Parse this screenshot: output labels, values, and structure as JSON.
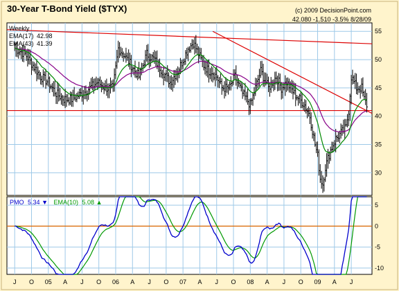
{
  "header": {
    "title": "30-Year T-Bond Yield ($TYX)",
    "copyright": "(c) 2009 DecisionPoint.com",
    "quote": "42.080  -1.510  -3.5%  8/28/09",
    "period": "Weekly"
  },
  "colors": {
    "background": "#fff4cc",
    "plot_bg": "#ffffff",
    "grid": "#9ec9e8",
    "bars": "#000000",
    "ema_short": "#008800",
    "ema_long": "#880088",
    "trendline": "#dd0000",
    "pmo": "#0000cc",
    "pmo_signal": "#009900",
    "zero_line": "#dd6600"
  },
  "chart_data": [
    {
      "type": "bar",
      "subtype": "high-low price bars with moving averages",
      "title": "30-Year T-Bond Yield ($TYX)",
      "frequency": "Weekly",
      "x_ticks": [
        "J",
        "O",
        "05",
        "A",
        "J",
        "O",
        "06",
        "A",
        "J",
        "O",
        "07",
        "A",
        "J",
        "O",
        "08",
        "A",
        "J",
        "O",
        "09",
        "A",
        "J"
      ],
      "x_tick_weeks": [
        0,
        13,
        26,
        39,
        52,
        65,
        78,
        91,
        104,
        117,
        130,
        143,
        156,
        169,
        182,
        195,
        208,
        221,
        234,
        247,
        260
      ],
      "y_ticks": [
        30,
        35,
        40,
        45,
        50,
        55
      ],
      "ylim": [
        26,
        56.5
      ],
      "right_axis": true,
      "grid": true,
      "legend": [
        {
          "name": "EMA(17)",
          "value": "42.98",
          "color": "#008800"
        },
        {
          "name": "EMA(43)",
          "value": "41.39",
          "color": "#880088"
        }
      ],
      "anchors_week": [
        0,
        8,
        14,
        20,
        26,
        32,
        38,
        44,
        52,
        58,
        64,
        70,
        76,
        80,
        84,
        90,
        96,
        102,
        108,
        114,
        120,
        126,
        130,
        134,
        138,
        140,
        142,
        146,
        150,
        152,
        156,
        160,
        166,
        170,
        176,
        182,
        186,
        190,
        196,
        202,
        206,
        210,
        216,
        220,
        224,
        228,
        232,
        234,
        236,
        238,
        240,
        244,
        248,
        252,
        256,
        258,
        260,
        264,
        268,
        270,
        272
      ],
      "anchors_close": [
        52,
        51,
        49,
        47,
        46,
        44,
        43,
        43,
        44,
        45,
        46,
        45,
        45,
        52,
        51,
        49,
        47,
        51,
        50,
        48,
        46,
        48,
        50,
        52,
        53,
        52,
        51,
        49,
        48,
        48,
        47,
        45,
        45,
        47,
        44,
        42,
        45,
        48,
        45,
        47,
        45,
        46,
        44,
        43,
        42,
        40,
        35,
        33,
        29,
        28,
        31,
        34,
        36,
        37,
        38,
        41,
        47,
        45,
        45,
        43,
        42
      ],
      "ema_short": {
        "name": "EMA(17)",
        "last": 42.98
      },
      "ema_long": {
        "name": "EMA(43)",
        "last": 41.39
      },
      "trendlines": [
        {
          "x1": -6,
          "y1": 55.3,
          "x2": 276,
          "y2": 52.8
        },
        {
          "x1": 153,
          "y1": 55.0,
          "x2": 276,
          "y2": 40.5
        },
        {
          "x1": -6,
          "y1": 41.0,
          "x2": 276,
          "y2": 41.0
        }
      ]
    },
    {
      "type": "line",
      "title": "PMO",
      "legend": [
        {
          "name": "PMO",
          "value": "5.34",
          "color": "#0000cc",
          "arrow": "down"
        },
        {
          "name": "EMA(10)",
          "value": "5.08",
          "color": "#009900",
          "arrow": "up"
        }
      ],
      "y_ticks": [
        -10,
        -5,
        0,
        5
      ],
      "ylim": [
        -11.5,
        7
      ],
      "zero_line": 0
    }
  ]
}
